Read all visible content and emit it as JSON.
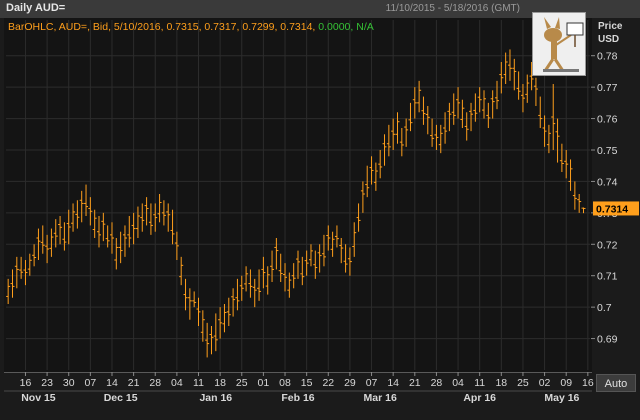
{
  "window": {
    "title": "Daily AUD=",
    "date_range": "11/10/2015 - 5/18/2016 (GMT)"
  },
  "legend": {
    "prefix": "BarOHLC, AUD=, Bid, 5/10/2016, 0.7315, 0.7317, 0.7299, 0.7314,",
    "change": "0.0000,",
    "tail": "N/A"
  },
  "axis": {
    "title_line1": "Price",
    "title_line2": "USD",
    "last_price_label": "0.7314",
    "auto_label": "Auto"
  },
  "colors": {
    "bars": "#ff9f1c",
    "grid": "#2c2c2c",
    "last_price_bg": "#ff9f1c",
    "change_text": "#35c235"
  },
  "chart_data": {
    "type": "bar",
    "subtype": "ohlc",
    "ylim": [
      0.68,
      0.785
    ],
    "yticks": [
      0.69,
      0.7,
      0.71,
      0.72,
      0.73,
      0.74,
      0.75,
      0.76,
      0.77,
      0.78
    ],
    "ytick_labels": [
      "0.69",
      "0.7",
      "0.71",
      "0.72",
      "0.73",
      "0.74",
      "0.75",
      "0.76",
      "0.77",
      "0.78"
    ],
    "xticks": [
      {
        "label": "16",
        "idx": 4
      },
      {
        "label": "23",
        "idx": 9
      },
      {
        "label": "30",
        "idx": 14
      },
      {
        "label": "07",
        "idx": 19
      },
      {
        "label": "14",
        "idx": 24
      },
      {
        "label": "21",
        "idx": 29
      },
      {
        "label": "28",
        "idx": 34
      },
      {
        "label": "04",
        "idx": 39
      },
      {
        "label": "11",
        "idx": 44
      },
      {
        "label": "18",
        "idx": 49
      },
      {
        "label": "25",
        "idx": 54
      },
      {
        "label": "01",
        "idx": 59
      },
      {
        "label": "08",
        "idx": 64
      },
      {
        "label": "15",
        "idx": 69
      },
      {
        "label": "22",
        "idx": 74
      },
      {
        "label": "29",
        "idx": 79
      },
      {
        "label": "07",
        "idx": 84
      },
      {
        "label": "14",
        "idx": 89
      },
      {
        "label": "21",
        "idx": 94
      },
      {
        "label": "28",
        "idx": 99
      },
      {
        "label": "04",
        "idx": 104
      },
      {
        "label": "11",
        "idx": 109
      },
      {
        "label": "18",
        "idx": 114
      },
      {
        "label": "25",
        "idx": 119
      },
      {
        "label": "02",
        "idx": 124
      },
      {
        "label": "09",
        "idx": 129
      },
      {
        "label": "16",
        "idx": 134
      }
    ],
    "month_labels": [
      {
        "label": "Nov 15",
        "idx": 7
      },
      {
        "label": "Dec 15",
        "idx": 26
      },
      {
        "label": "Jan 16",
        "idx": 48
      },
      {
        "label": "Feb 16",
        "idx": 67
      },
      {
        "label": "Mar 16",
        "idx": 86
      },
      {
        "label": "Apr 16",
        "idx": 109
      },
      {
        "label": "May 16",
        "idx": 128
      }
    ],
    "n_slots": 135,
    "bars_hl": [
      [
        0.701,
        0.709
      ],
      [
        0.703,
        0.712
      ],
      [
        0.706,
        0.716
      ],
      [
        0.709,
        0.716
      ],
      [
        0.707,
        0.715
      ],
      [
        0.71,
        0.717
      ],
      [
        0.713,
        0.72
      ],
      [
        0.715,
        0.725
      ],
      [
        0.717,
        0.726
      ],
      [
        0.714,
        0.723
      ],
      [
        0.716,
        0.725
      ],
      [
        0.719,
        0.728
      ],
      [
        0.72,
        0.729
      ],
      [
        0.718,
        0.727
      ],
      [
        0.72,
        0.731
      ],
      [
        0.724,
        0.733
      ],
      [
        0.725,
        0.734
      ],
      [
        0.727,
        0.737
      ],
      [
        0.729,
        0.739
      ],
      [
        0.726,
        0.735
      ],
      [
        0.722,
        0.731
      ],
      [
        0.719,
        0.729
      ],
      [
        0.721,
        0.73
      ],
      [
        0.719,
        0.726
      ],
      [
        0.717,
        0.727
      ],
      [
        0.712,
        0.722
      ],
      [
        0.714,
        0.724
      ],
      [
        0.716,
        0.726
      ],
      [
        0.719,
        0.729
      ],
      [
        0.72,
        0.73
      ],
      [
        0.722,
        0.732
      ],
      [
        0.724,
        0.733
      ],
      [
        0.726,
        0.735
      ],
      [
        0.723,
        0.733
      ],
      [
        0.724,
        0.733
      ],
      [
        0.727,
        0.736
      ],
      [
        0.726,
        0.734
      ],
      [
        0.724,
        0.733
      ],
      [
        0.72,
        0.731
      ],
      [
        0.715,
        0.724
      ],
      [
        0.707,
        0.716
      ],
      [
        0.699,
        0.709
      ],
      [
        0.696,
        0.706
      ],
      [
        0.7,
        0.705
      ],
      [
        0.694,
        0.703
      ],
      [
        0.689,
        0.699
      ],
      [
        0.684,
        0.695
      ],
      [
        0.685,
        0.694
      ],
      [
        0.686,
        0.698
      ],
      [
        0.69,
        0.7
      ],
      [
        0.692,
        0.701
      ],
      [
        0.694,
        0.703
      ],
      [
        0.697,
        0.706
      ],
      [
        0.699,
        0.709
      ],
      [
        0.702,
        0.71
      ],
      [
        0.705,
        0.713
      ],
      [
        0.703,
        0.712
      ],
      [
        0.7,
        0.709
      ],
      [
        0.702,
        0.712
      ],
      [
        0.706,
        0.716
      ],
      [
        0.704,
        0.713
      ],
      [
        0.708,
        0.718
      ],
      [
        0.712,
        0.722
      ],
      [
        0.708,
        0.717
      ],
      [
        0.705,
        0.714
      ],
      [
        0.703,
        0.711
      ],
      [
        0.706,
        0.714
      ],
      [
        0.709,
        0.718
      ],
      [
        0.707,
        0.716
      ],
      [
        0.71,
        0.718
      ],
      [
        0.713,
        0.72
      ],
      [
        0.709,
        0.718
      ],
      [
        0.711,
        0.72
      ],
      [
        0.713,
        0.723
      ],
      [
        0.718,
        0.726
      ],
      [
        0.716,
        0.724
      ],
      [
        0.719,
        0.726
      ],
      [
        0.714,
        0.722
      ],
      [
        0.711,
        0.72
      ],
      [
        0.71,
        0.719
      ],
      [
        0.716,
        0.727
      ],
      [
        0.724,
        0.733
      ],
      [
        0.73,
        0.74
      ],
      [
        0.735,
        0.745
      ],
      [
        0.739,
        0.748
      ],
      [
        0.737,
        0.746
      ],
      [
        0.741,
        0.75
      ],
      [
        0.745,
        0.755
      ],
      [
        0.748,
        0.758
      ],
      [
        0.75,
        0.76
      ],
      [
        0.752,
        0.762
      ],
      [
        0.748,
        0.757
      ],
      [
        0.751,
        0.76
      ],
      [
        0.756,
        0.765
      ],
      [
        0.76,
        0.77
      ],
      [
        0.762,
        0.772
      ],
      [
        0.758,
        0.767
      ],
      [
        0.755,
        0.764
      ],
      [
        0.751,
        0.76
      ],
      [
        0.75,
        0.758
      ],
      [
        0.749,
        0.758
      ],
      [
        0.752,
        0.762
      ],
      [
        0.756,
        0.765
      ],
      [
        0.758,
        0.768
      ],
      [
        0.76,
        0.77
      ],
      [
        0.757,
        0.766
      ],
      [
        0.753,
        0.762
      ],
      [
        0.756,
        0.765
      ],
      [
        0.759,
        0.768
      ],
      [
        0.762,
        0.77
      ],
      [
        0.76,
        0.769
      ],
      [
        0.757,
        0.765
      ],
      [
        0.76,
        0.769
      ],
      [
        0.763,
        0.772
      ],
      [
        0.768,
        0.778
      ],
      [
        0.771,
        0.781
      ],
      [
        0.772,
        0.782
      ],
      [
        0.769,
        0.779
      ],
      [
        0.766,
        0.775
      ],
      [
        0.762,
        0.771
      ],
      [
        0.765,
        0.774
      ],
      [
        0.769,
        0.778
      ],
      [
        0.764,
        0.773
      ],
      [
        0.757,
        0.767
      ],
      [
        0.751,
        0.761
      ],
      [
        0.749,
        0.758
      ],
      [
        0.75,
        0.771
      ],
      [
        0.746,
        0.76
      ],
      [
        0.743,
        0.752
      ],
      [
        0.741,
        0.75
      ],
      [
        0.737,
        0.747
      ],
      [
        0.731,
        0.74
      ],
      [
        0.73,
        0.736
      ],
      [
        0.7299,
        0.7317
      ]
    ],
    "last_bar": {
      "date": "5/10/2016",
      "open": 0.7315,
      "high": 0.7317,
      "low": 0.7299,
      "close": 0.7314
    }
  }
}
